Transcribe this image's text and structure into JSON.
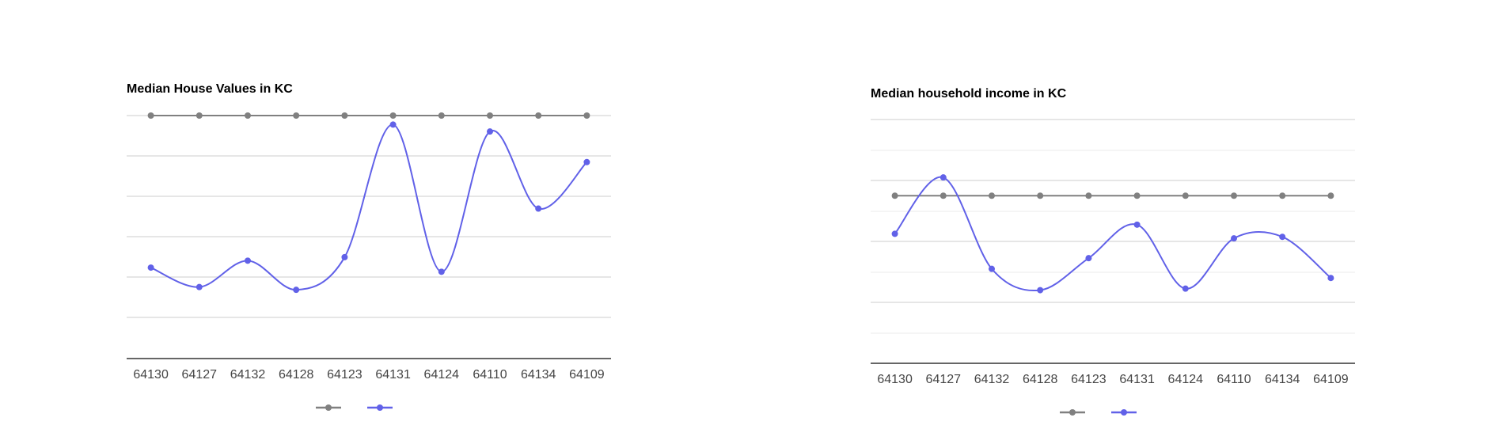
{
  "colors": {
    "series_gray": "#808080",
    "series_blue": "#6161e8",
    "grid": "#cccccc",
    "axis": "#333333"
  },
  "chart_data": [
    {
      "type": "line",
      "title": "Median House Values in KC",
      "categories": [
        "64130",
        "64127",
        "64132",
        "64128",
        "64123",
        "64131",
        "64124",
        "64110",
        "64134",
        "64109"
      ],
      "series": [
        {
          "color": "#808080",
          "values": [
            300000,
            300000,
            300000,
            300000,
            300000,
            300000,
            300000,
            300000,
            300000,
            300000
          ]
        },
        {
          "color": "#6161e8",
          "values": [
            81000,
            53000,
            91000,
            49000,
            96000,
            287000,
            75000,
            277000,
            166000,
            233000
          ]
        }
      ],
      "ylim": [
        -50000,
        300000
      ],
      "grid": true,
      "legend": "bottom"
    },
    {
      "type": "line",
      "title": "Median household income in KC",
      "categories": [
        "64130",
        "64127",
        "64132",
        "64128",
        "64123",
        "64131",
        "64124",
        "64110",
        "64134",
        "64109"
      ],
      "series": [
        {
          "color": "#808080",
          "values": [
            55000,
            55000,
            55000,
            55000,
            55000,
            55000,
            55000,
            55000,
            55000,
            55000
          ]
        },
        {
          "color": "#6161e8",
          "values": [
            42500,
            61000,
            31000,
            24000,
            34500,
            45500,
            24500,
            41000,
            41500,
            28000
          ]
        }
      ],
      "ylim": [
        0,
        80000
      ],
      "grid": true,
      "legend": "bottom"
    }
  ]
}
